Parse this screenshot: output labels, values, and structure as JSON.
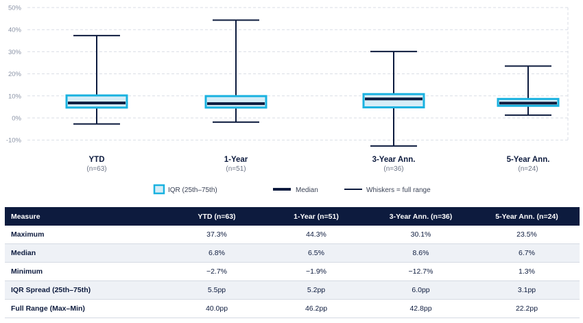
{
  "chart_data": {
    "type": "boxplot",
    "yticks": [
      "50%",
      "40%",
      "30%",
      "20%",
      "10%",
      "0%",
      "-10%"
    ],
    "ytick_values": [
      50,
      40,
      30,
      20,
      10,
      0,
      -10
    ],
    "ylim": [
      -12,
      50
    ],
    "categories": [
      {
        "label": "YTD",
        "n": "(n=63)",
        "min": -2.7,
        "q1": 4.7,
        "median": 6.8,
        "q3": 10.2,
        "max": 37.3
      },
      {
        "label": "1-Year",
        "n": "(n=51)",
        "min": -1.9,
        "q1": 4.7,
        "median": 6.5,
        "q3": 9.9,
        "max": 44.3
      },
      {
        "label": "3-Year Ann.",
        "n": "(n=36)",
        "min": -12.7,
        "q1": 4.8,
        "median": 8.6,
        "q3": 10.8,
        "max": 30.1
      },
      {
        "label": "5-Year Ann.",
        "n": "(n=24)",
        "min": 1.3,
        "q1": 5.5,
        "median": 6.7,
        "q3": 8.6,
        "max": 23.5
      }
    ],
    "legend": {
      "iqr": "IQR (25th–75th)",
      "median": "Median",
      "whiskers": "Whiskers = full range"
    },
    "colors": {
      "box_fill": "#d6edf7",
      "box_stroke": "#1ab2e0",
      "median": "#0d1b3e",
      "whisker": "#0d1b3e",
      "grid": "#d9dde5"
    }
  },
  "table": {
    "headers": [
      "Measure",
      "YTD (n=63)",
      "1-Year (n=51)",
      "3-Year Ann. (n=36)",
      "5-Year Ann. (n=24)"
    ],
    "rows": [
      [
        "Maximum",
        "37.3%",
        "44.3%",
        "30.1%",
        "23.5%"
      ],
      [
        "Median",
        "6.8%",
        "6.5%",
        "8.6%",
        "6.7%"
      ],
      [
        "Minimum",
        "−2.7%",
        "−1.9%",
        "−12.7%",
        "1.3%"
      ],
      [
        "IQR Spread (25th–75th)",
        "5.5pp",
        "5.2pp",
        "6.0pp",
        "3.1pp"
      ],
      [
        "Full Range (Max–Min)",
        "40.0pp",
        "46.2pp",
        "42.8pp",
        "22.2pp"
      ]
    ]
  }
}
